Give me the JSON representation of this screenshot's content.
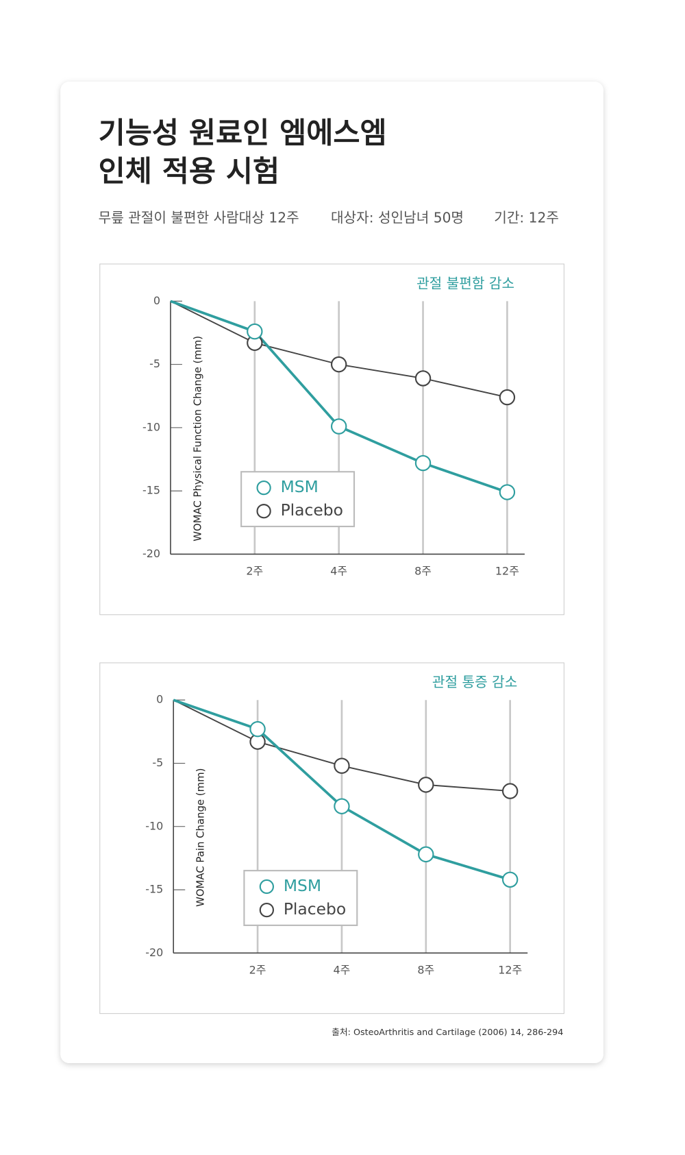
{
  "header": {
    "title": [
      "기능성 원료인 엠에스엠",
      "인체 적용 시험"
    ],
    "info": [
      "무릎 관절이 불편한 사람대상 12주",
      "대상자: 성인남녀 50명",
      "기간: 12주"
    ]
  },
  "chart_data": [
    {
      "type": "line",
      "title": "관절 불편함 감소",
      "y_label": "WOMAC Physical Function Change (mm)",
      "categories": [
        null,
        "2주",
        "4주",
        "8주",
        "12주"
      ],
      "series": [
        {
          "name": "MSM",
          "color": "#2f9e9f",
          "values": [
            0,
            -2.4,
            -9.9,
            -12.8,
            -15.1
          ]
        },
        {
          "name": "Placebo",
          "color": "#444444",
          "values": [
            0,
            -3.3,
            -5.0,
            -6.1,
            -7.6
          ]
        }
      ],
      "ylim": [
        0,
        -20
      ],
      "yticks": [
        0,
        -5,
        -10,
        -15,
        -20
      ]
    },
    {
      "type": "line",
      "title": "관절 통증 감소",
      "y_label": "WOMAC Pain Change (mm)",
      "categories": [
        null,
        "2주",
        "4주",
        "8주",
        "12주"
      ],
      "series": [
        {
          "name": "MSM",
          "color": "#2f9e9f",
          "values": [
            0,
            -2.3,
            -8.4,
            -12.2,
            -14.2
          ]
        },
        {
          "name": "Placebo",
          "color": "#444444",
          "values": [
            0,
            -3.3,
            -5.2,
            -6.7,
            -7.2
          ]
        }
      ],
      "ylim": [
        0,
        -20
      ],
      "yticks": [
        0,
        -5,
        -10,
        -15,
        -20
      ]
    }
  ],
  "source": "출처: OsteoArthritis and Cartilage (2006) 14, 286-294"
}
